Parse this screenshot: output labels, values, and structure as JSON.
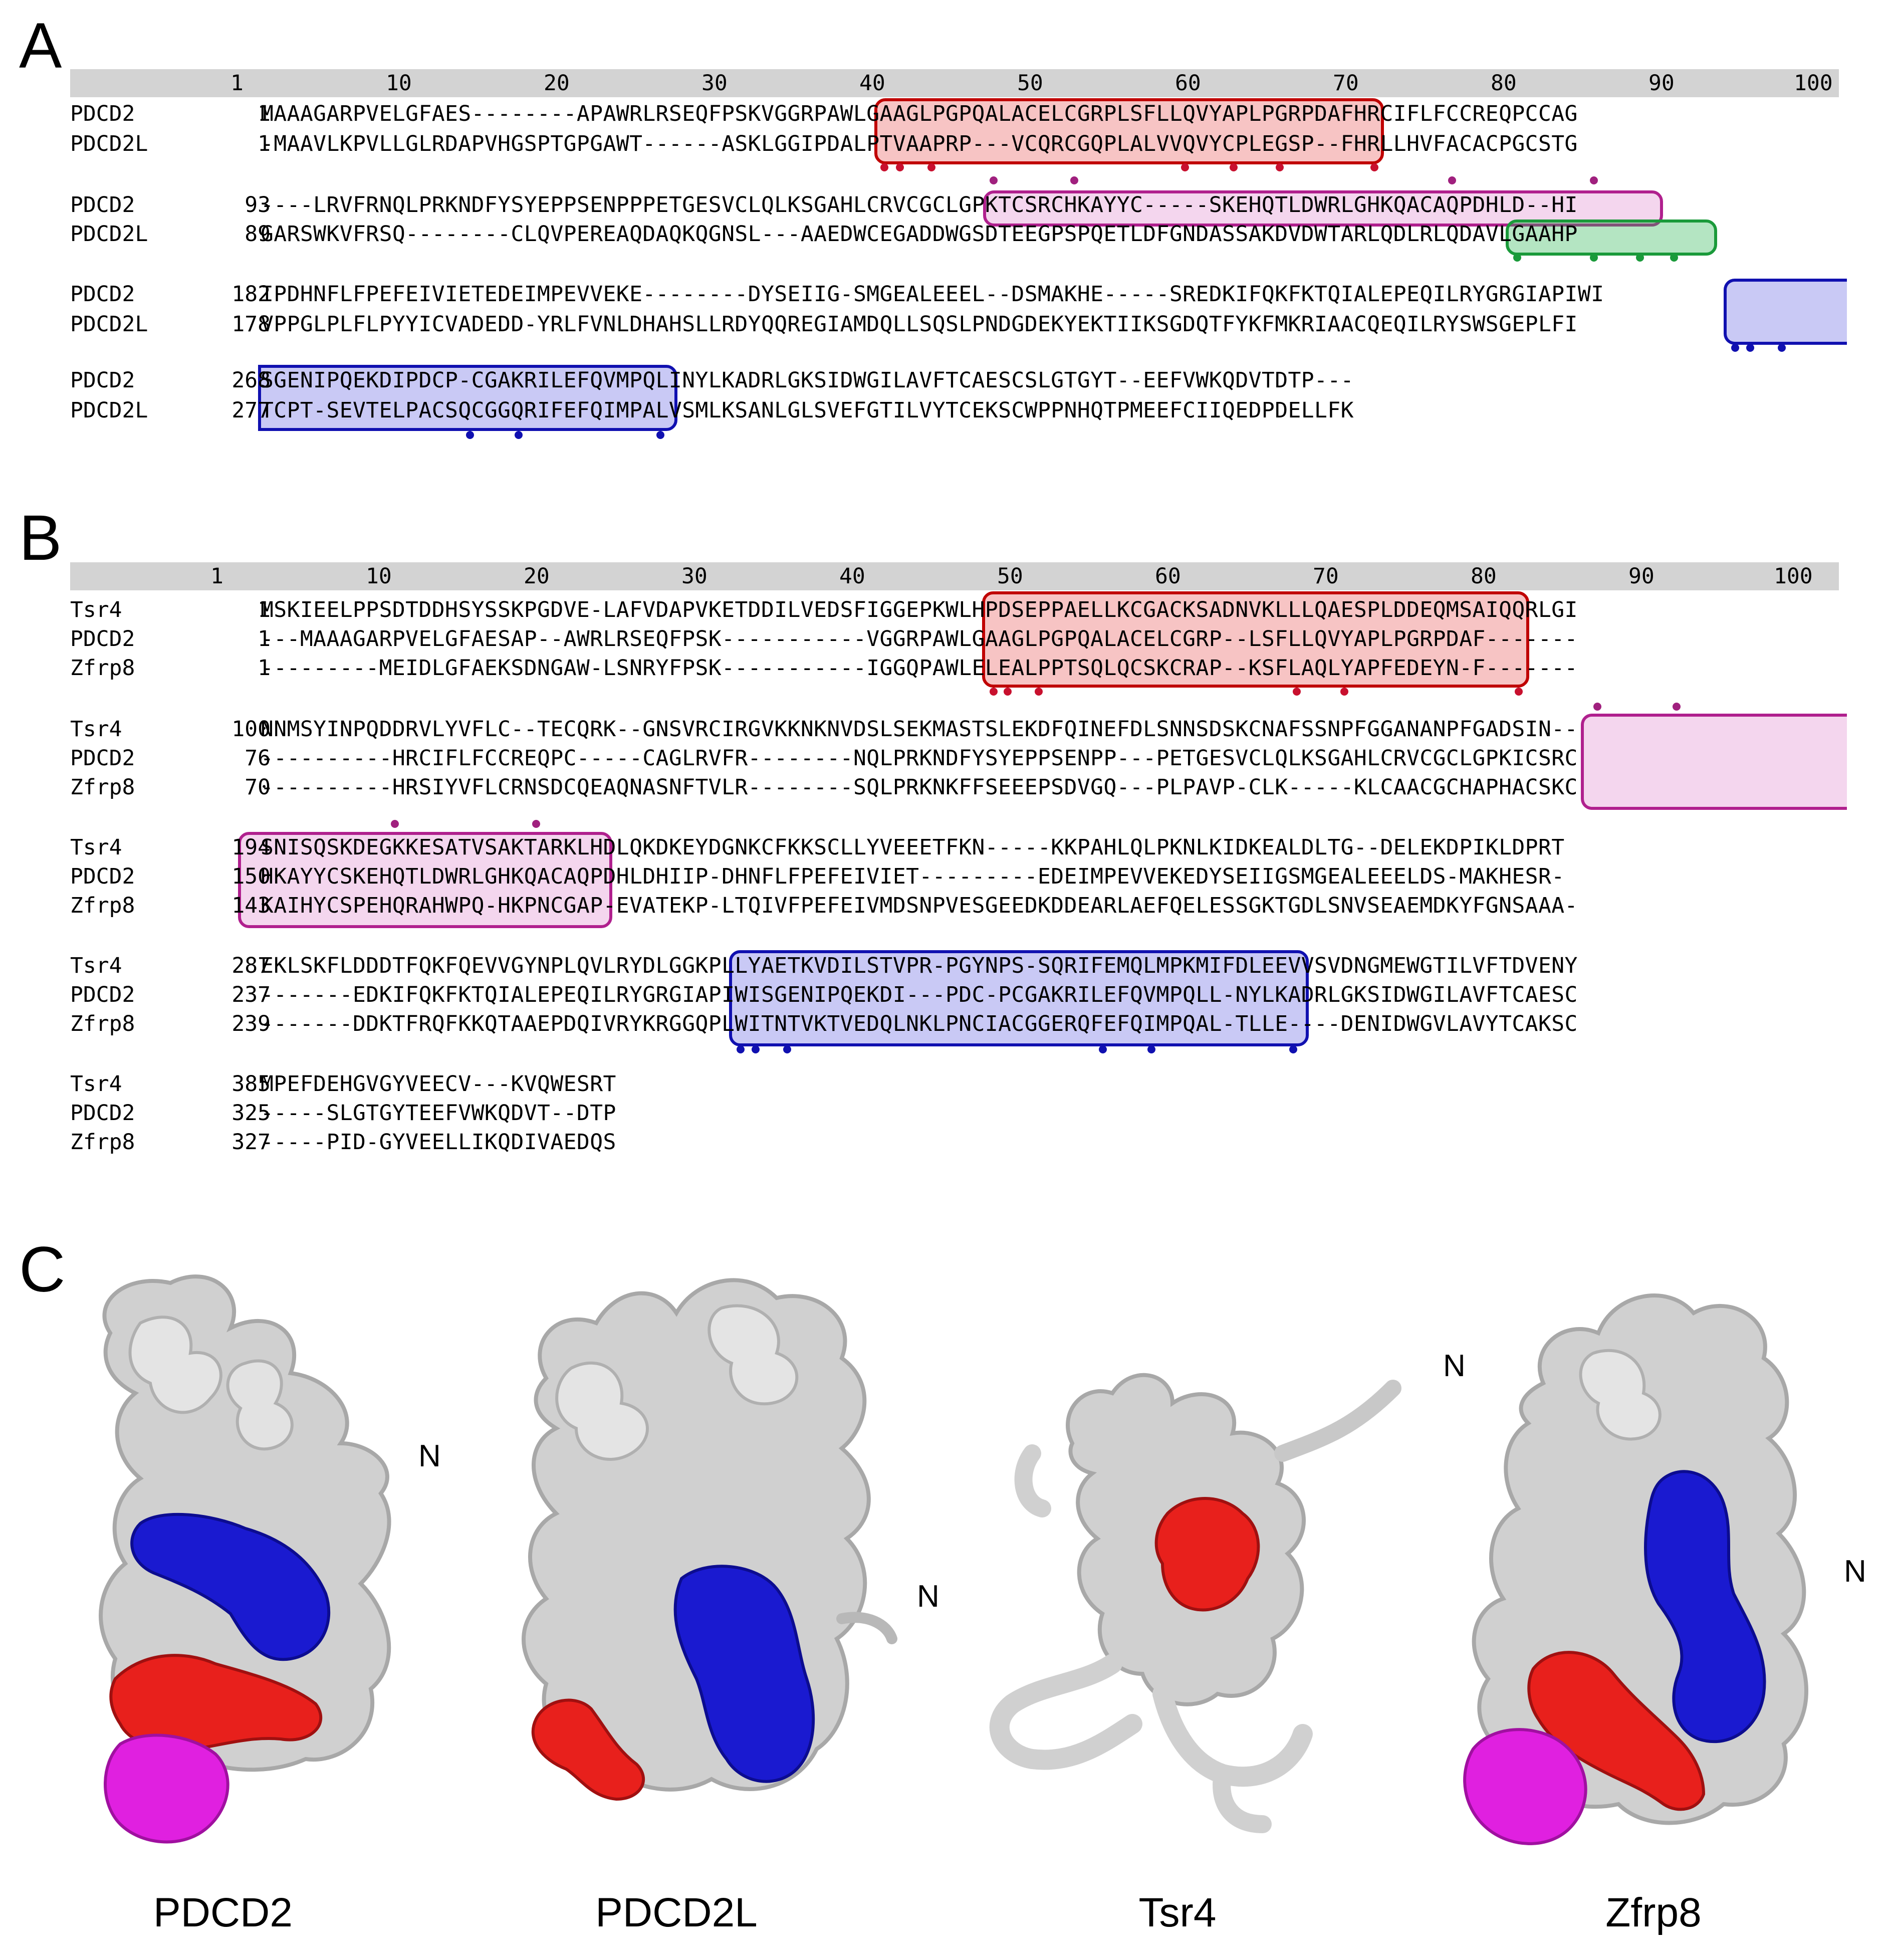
{
  "panels": {
    "a": "A",
    "b": "B",
    "c": "C"
  },
  "ruler": {
    "ticks": [
      "1",
      "10",
      "20",
      "30",
      "40",
      "50",
      "60",
      "70",
      "80",
      "90",
      "100"
    ]
  },
  "panel_a": {
    "blocks": [
      {
        "rows": [
          {
            "name": "PDCD2",
            "start": "1",
            "seq": "MAAAGARPVELGFAES--------APAWRLRSEQFPSKVGGRPAWLGAAGLPGPQALACELCGRPLSFLLQVYAPLPGRPDAFHRCIFLFCCREQPCCAG"
          },
          {
            "name": "PDCD2L",
            "start": "1",
            "seq": "-MAAVLKPVLLGLRDAPVHGSPTGPGAWT------ASKLGGIPDALPTVAAPRP---VCQRCGQPLALVVQVYCPLEGSP--FHRLLHVFACACPGCSTG"
          }
        ]
      },
      {
        "rows": [
          {
            "name": "PDCD2",
            "start": "93",
            "seq": "----LRVFRNQLPRKNDFYSYEPPSENPPPETGESVCLQLKSGAHLCRVCGCLGPKTCSRCHKAYYC-----SKEHQTLDWRLGHKQACAQPDHLD--HI"
          },
          {
            "name": "PDCD2L",
            "start": "89",
            "seq": "GARSWKVFRSQ--------CLQVPEREAQDAQKQGNSL---AAEDWCEGADDWGSDTEEGPSPQETLDFGNDASSAKDVDWTARLQDLRLQDAVLGAAHP"
          }
        ]
      },
      {
        "rows": [
          {
            "name": "PDCD2",
            "start": "182",
            "seq": "IPDHNFLFPEFEIVIETEDEIMPEVVEKE--------DYSEIIG-SMGEALEEEL--DSMAKHE-----SREDKIFQKFKTQIALEPEQILRYGRGIAPIWI"
          },
          {
            "name": "PDCD2L",
            "start": "178",
            "seq": "VPPGLPLFLPYYICVADEDD-YRLFVNLDHAHSLLRDYQQREGIAMDQLLSQSLPNDGDEKYEKTIIKSGDQTFYKFMKRIAACQEQILRYSWSGEPLFI"
          }
        ]
      },
      {
        "rows": [
          {
            "name": "PDCD2",
            "start": "268",
            "seq": "SGENIPQEKDIPDCP-CGAKRILEFQVMPQLINYLKADRLGKSIDWGILAVFTCAESCSLGTGYT--EEFVWKQDVTDTP---"
          },
          {
            "name": "PDCD2L",
            "start": "277",
            "seq": "TCPT-SEVTELPACSQCGGQRIFEFQIMPALVSMLKSANLGLSVEFGTILVYTCEKSCWPPNHQTPMEEFCIIQEDPDELLFK"
          }
        ]
      }
    ]
  },
  "panel_b": {
    "blocks": [
      {
        "rows": [
          {
            "name": "Tsr4",
            "start": "1",
            "seq": "MSKIEELPPSDTDDHSYSSKPGDVE-LAFVDAPVKETDDILVEDSFIGGEPKWLHPDSEPPAELLKCGACKSADNVKLLLQAESPLDDEQMSAIQQRLGI"
          },
          {
            "name": "PDCD2",
            "start": "1",
            "seq": "---MAAAGARPVELGFAESAP--AWRLRSEQFPSK-----------VGGRPAWLGAAGLPGPQALACELCGRP--LSFLLQVYAPLPGRPDAF-------"
          },
          {
            "name": "Zfrp8",
            "start": "1",
            "seq": "---------MEIDLGFAEKSDNGAW-LSNRYFPSK-----------IGGQPAWLELEALPPTSQLQCSKCRAP--KSFLAQLYAPFEDEYN-F-------"
          }
        ]
      },
      {
        "rows": [
          {
            "name": "Tsr4",
            "start": "100",
            "seq": "NNMSYINPQDDRVLYVFLC--TECQRK--GNSVRCIRGVKKNKNVDSLSEKMASTSLEKDFQINEFDLSNNSDSKCNAFSSNPFGGANANPFGADSIN--"
          },
          {
            "name": "PDCD2",
            "start": "76",
            "seq": "----------HRCIFLFCCREQPC-----CAGLRVFR--------NQLPRKNDFYSYEPPSENPP---PETGESVCLQLKSGAHLCRVCGCLGPKICSRC"
          },
          {
            "name": "Zfrp8",
            "start": "70",
            "seq": "----------HRSIYVFLCRNSDCQEAQNASNFTVLR--------SQLPRKNKFFSEEEPSDVGQ---PLPAVP-CLK-----KLCAACGCHAPHACSKC"
          }
        ]
      },
      {
        "rows": [
          {
            "name": "Tsr4",
            "start": "194",
            "seq": "SNISQSKDEGKKESATVSAKTARKLHDLQKDKEYDGNKCFKKSCLLYVEEETFKN-----KKPAHLQLPKNLKIDKEALDLTG--DELEKDPIKLDPRT"
          },
          {
            "name": "PDCD2",
            "start": "150",
            "seq": "HKAYYCSKEHQTLDWRLGHKQACAQPDHLDHIIP-DHNFLFPEFEIVIET---------EDEIMPEVVEKEDYSEIIGSMGEALEEELDS-MAKHESR-"
          },
          {
            "name": "Zfrp8",
            "start": "143",
            "seq": "KAIHYCSPEHQRAHWPQ-HKPNCGAP-EVATEKP-LTQIVFPEFEIVMDSNPVESGEEDKDDEARLAEFQELESSGKTGDLSNVSEAEMDKYFGNSAAA-"
          }
        ]
      },
      {
        "rows": [
          {
            "name": "Tsr4",
            "start": "287",
            "seq": "EKLSKFLDDDTFQKFQEVVGYNPLQVLRYDLGGKPLLYAETKVDILSTVPR-PGYNPS-SQRIFEMQLMPKMIFDLEEVVSVDNGMEWGTILVFTDVENY"
          },
          {
            "name": "PDCD2",
            "start": "237",
            "seq": "-------EDKIFQKFKTQIALEPEQILRYGRGIAPIWISGENIPQEKDI---PDC-PCGAKRILEFQVMPQLL-NYLKADRLGKSIDWGILAVFTCAESC"
          },
          {
            "name": "Zfrp8",
            "start": "239",
            "seq": "-------DDKTFRQFKKQTAAEPDQIVRYKRGGQPLWITNTVKTVEDQLNKLPNCIACGGERQFEFQIMPQAL-TLLE----DENIDWGVLAVYTCAKSC"
          }
        ]
      },
      {
        "rows": [
          {
            "name": "Tsr4",
            "start": "385",
            "seq": "MPEFDEHGVGYVEECV---KVQWESRT"
          },
          {
            "name": "PDCD2",
            "start": "325",
            "seq": "-----SLGTGYTEEFVWKQDVT--DTP"
          },
          {
            "name": "Zfrp8",
            "start": "327",
            "seq": "-----PID-GYVEELLIKQDIVAEDQS"
          }
        ]
      }
    ]
  },
  "panel_c": {
    "structures": [
      {
        "label": "PDCD2",
        "n_label": "N"
      },
      {
        "label": "PDCD2L",
        "n_label": "N"
      },
      {
        "label": "Tsr4",
        "n_label": "N"
      },
      {
        "label": "Zfrp8",
        "n_label": "N"
      }
    ],
    "colors": {
      "surface": "#d4d4d4",
      "red_domain": "#e8201c",
      "blue_domain": "#1a1ad0",
      "magenta_domain": "#e020e0"
    }
  }
}
